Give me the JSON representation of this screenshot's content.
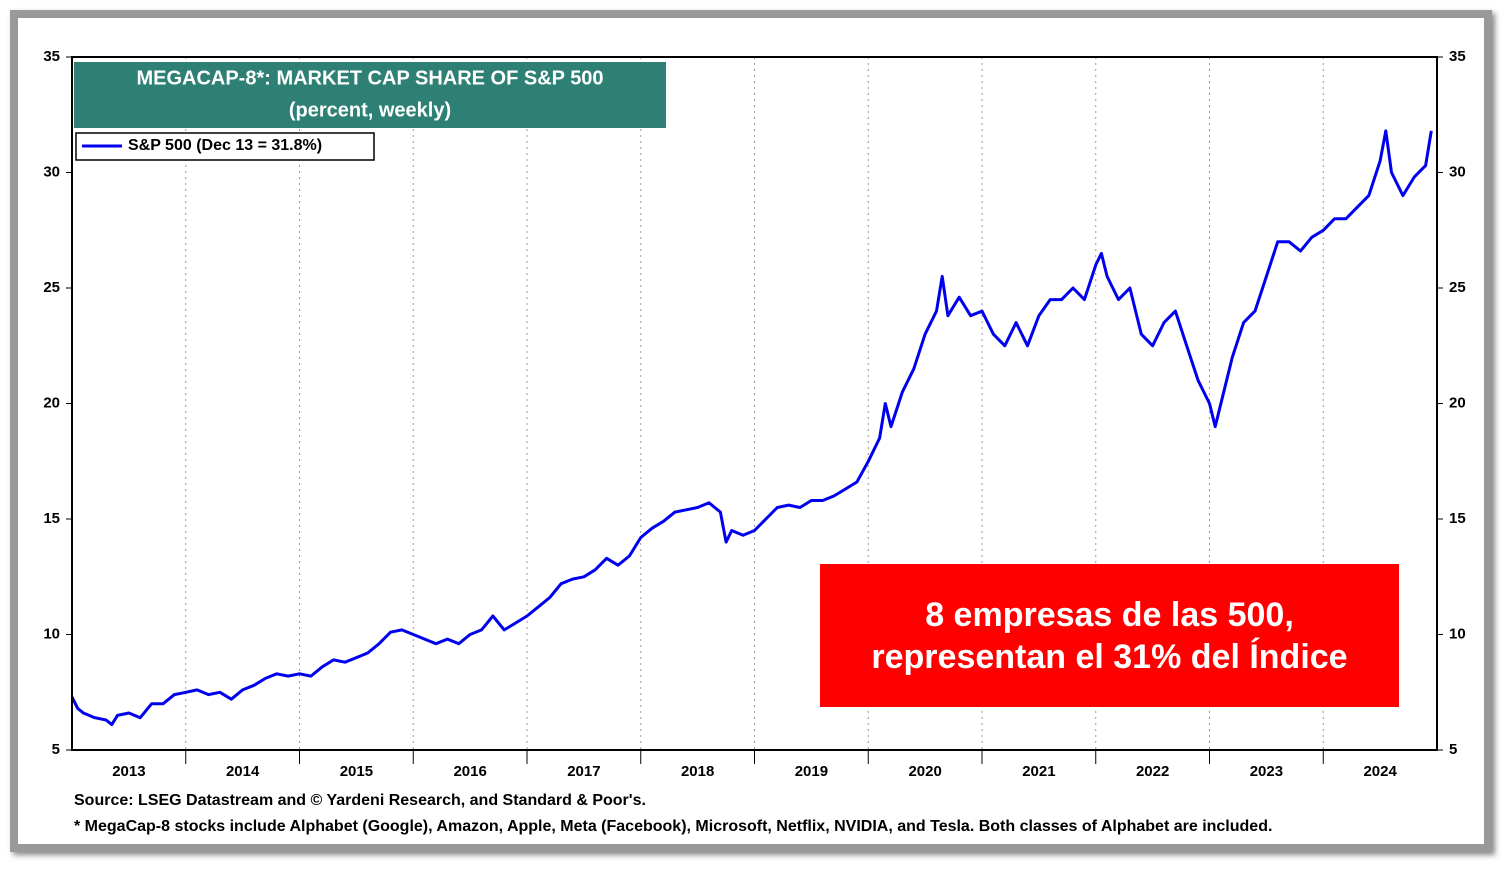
{
  "chart_data": {
    "type": "line",
    "title": "MEGACAP-8*: MARKET CAP SHARE OF S&P 500",
    "subtitle": "(percent, weekly)",
    "annotation": "8 empresas de las 500, representan el 31% del Índice",
    "source": "Source: LSEG Datastream and © Yardeni Research, and Standard & Poor's.",
    "footnote": "* MegaCap-8 stocks include Alphabet (Google), Amazon, Apple, Meta (Facebook), Microsoft, Netflix, NVIDIA, and Tesla. Both classes of Alphabet are included.",
    "xlim": [
      2013,
      2025
    ],
    "xticks": [
      {
        "value": 2013.5,
        "label": "2013"
      },
      {
        "value": 2014.5,
        "label": "2014"
      },
      {
        "value": 2015.5,
        "label": "2015"
      },
      {
        "value": 2016.5,
        "label": "2016"
      },
      {
        "value": 2017.5,
        "label": "2017"
      },
      {
        "value": 2018.5,
        "label": "2018"
      },
      {
        "value": 2019.5,
        "label": "2019"
      },
      {
        "value": 2020.5,
        "label": "2020"
      },
      {
        "value": 2021.5,
        "label": "2021"
      },
      {
        "value": 2022.5,
        "label": "2022"
      },
      {
        "value": 2023.5,
        "label": "2023"
      },
      {
        "value": 2024.5,
        "label": "2024"
      }
    ],
    "xgrid": [
      2014,
      2015,
      2016,
      2017,
      2018,
      2019,
      2020,
      2021,
      2022,
      2023,
      2024
    ],
    "ylim": [
      5,
      35
    ],
    "yticks": [
      5,
      10,
      15,
      20,
      25,
      30,
      35
    ],
    "y2lim": [
      5,
      35
    ],
    "y2ticks": [
      5,
      10,
      15,
      20,
      25,
      30,
      35
    ],
    "x": [
      2013.0,
      2013.05,
      2013.1,
      2013.2,
      2013.3,
      2013.35,
      2013.4,
      2013.5,
      2013.6,
      2013.7,
      2013.8,
      2013.9,
      2014.0,
      2014.1,
      2014.2,
      2014.3,
      2014.4,
      2014.5,
      2014.6,
      2014.7,
      2014.8,
      2014.9,
      2015.0,
      2015.1,
      2015.2,
      2015.3,
      2015.4,
      2015.5,
      2015.6,
      2015.7,
      2015.8,
      2015.9,
      2016.0,
      2016.1,
      2016.2,
      2016.3,
      2016.4,
      2016.5,
      2016.6,
      2016.7,
      2016.8,
      2016.9,
      2017.0,
      2017.1,
      2017.2,
      2017.3,
      2017.4,
      2017.5,
      2017.6,
      2017.7,
      2017.8,
      2017.9,
      2018.0,
      2018.1,
      2018.2,
      2018.3,
      2018.4,
      2018.5,
      2018.6,
      2018.7,
      2018.75,
      2018.8,
      2018.9,
      2019.0,
      2019.1,
      2019.2,
      2019.3,
      2019.4,
      2019.5,
      2019.6,
      2019.7,
      2019.8,
      2019.9,
      2020.0,
      2020.1,
      2020.15,
      2020.2,
      2020.3,
      2020.4,
      2020.5,
      2020.6,
      2020.65,
      2020.7,
      2020.8,
      2020.9,
      2021.0,
      2021.1,
      2021.2,
      2021.3,
      2021.4,
      2021.5,
      2021.6,
      2021.7,
      2021.8,
      2021.9,
      2022.0,
      2022.05,
      2022.1,
      2022.2,
      2022.3,
      2022.4,
      2022.5,
      2022.6,
      2022.7,
      2022.8,
      2022.9,
      2023.0,
      2023.05,
      2023.1,
      2023.2,
      2023.3,
      2023.4,
      2023.5,
      2023.6,
      2023.7,
      2023.8,
      2023.9,
      2024.0,
      2024.1,
      2024.2,
      2024.3,
      2024.4,
      2024.5,
      2024.55,
      2024.6,
      2024.7,
      2024.8,
      2024.9,
      2024.95
    ],
    "series": [
      {
        "name": "S&P 500 (Dec 13 = 31.8%)",
        "color": "#0000ee",
        "values": [
          7.3,
          6.8,
          6.6,
          6.4,
          6.3,
          6.1,
          6.5,
          6.6,
          6.4,
          7.0,
          7.0,
          7.4,
          7.5,
          7.6,
          7.4,
          7.5,
          7.2,
          7.6,
          7.8,
          8.1,
          8.3,
          8.2,
          8.3,
          8.2,
          8.6,
          8.9,
          8.8,
          9.0,
          9.2,
          9.6,
          10.1,
          10.2,
          10.0,
          9.8,
          9.6,
          9.8,
          9.6,
          10.0,
          10.2,
          10.8,
          10.2,
          10.5,
          10.8,
          11.2,
          11.6,
          12.2,
          12.4,
          12.5,
          12.8,
          13.3,
          13.0,
          13.4,
          14.2,
          14.6,
          14.9,
          15.3,
          15.4,
          15.5,
          15.7,
          15.3,
          14.0,
          14.5,
          14.3,
          14.5,
          15.0,
          15.5,
          15.6,
          15.5,
          15.8,
          15.8,
          16.0,
          16.3,
          16.6,
          17.5,
          18.5,
          20.0,
          19.0,
          20.5,
          21.5,
          23.0,
          24.0,
          25.5,
          23.8,
          24.6,
          23.8,
          24.0,
          23.0,
          22.5,
          23.5,
          22.5,
          23.8,
          24.5,
          24.5,
          25.0,
          24.5,
          26.0,
          26.5,
          25.5,
          24.5,
          25.0,
          23.0,
          22.5,
          23.5,
          24.0,
          22.5,
          21.0,
          20.0,
          19.0,
          20.0,
          22.0,
          23.5,
          24.0,
          25.5,
          27.0,
          27.0,
          26.6,
          27.2,
          27.5,
          28.0,
          28.0,
          28.5,
          29.0,
          30.5,
          31.8,
          30.0,
          29.0,
          29.8,
          30.3,
          31.8
        ]
      }
    ]
  }
}
